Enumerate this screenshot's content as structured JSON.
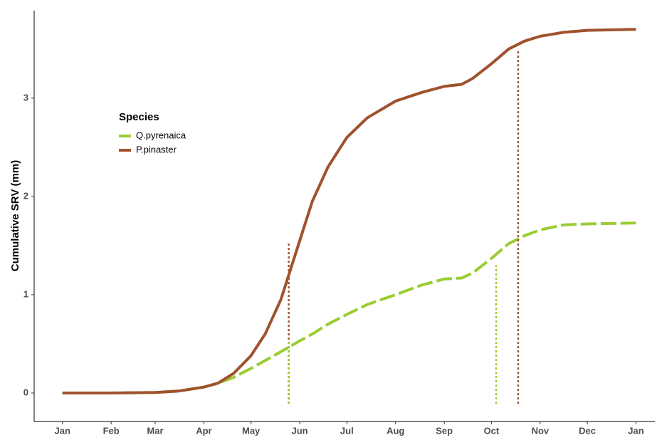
{
  "chart_data": {
    "type": "line",
    "y_label": "Cumulative SRV (mm)",
    "legend_title": "Species",
    "legend_position": "top-left",
    "grid": false,
    "xlim": [
      -17,
      378
    ],
    "ylim": [
      -0.29,
      3.89
    ],
    "xticks": [
      {
        "value": 1,
        "label": "Jan"
      },
      {
        "value": 32,
        "label": "Feb"
      },
      {
        "value": 60,
        "label": "Mar"
      },
      {
        "value": 91,
        "label": "Apr"
      },
      {
        "value": 121,
        "label": "May"
      },
      {
        "value": 152,
        "label": "Jun"
      },
      {
        "value": 182,
        "label": "Jul"
      },
      {
        "value": 213,
        "label": "Aug"
      },
      {
        "value": 244,
        "label": "Sep"
      },
      {
        "value": 274,
        "label": "Oct"
      },
      {
        "value": 305,
        "label": "Nov"
      },
      {
        "value": 335,
        "label": "Dec"
      },
      {
        "value": 366,
        "label": "Jan"
      }
    ],
    "yticks": [
      0,
      1,
      2,
      3
    ],
    "x": [
      1,
      32,
      60,
      75,
      91,
      100,
      110,
      121,
      130,
      140,
      152,
      160,
      170,
      182,
      195,
      213,
      230,
      244,
      255,
      262,
      274,
      285,
      295,
      305,
      320,
      335,
      366
    ],
    "series": [
      {
        "name": "Q.pyrenaica",
        "color": "#9acd32",
        "dash": true,
        "values": [
          0,
          0,
          0.005,
          0.02,
          0.06,
          0.1,
          0.16,
          0.25,
          0.33,
          0.42,
          0.53,
          0.6,
          0.7,
          0.8,
          0.9,
          1.0,
          1.1,
          1.16,
          1.17,
          1.22,
          1.37,
          1.52,
          1.6,
          1.66,
          1.71,
          1.72,
          1.73
        ]
      },
      {
        "name": "P.pinaster",
        "color": "#a0522d",
        "dash": false,
        "values": [
          0,
          0,
          0.005,
          0.02,
          0.06,
          0.1,
          0.2,
          0.38,
          0.6,
          0.95,
          1.55,
          1.95,
          2.3,
          2.6,
          2.8,
          2.97,
          3.06,
          3.12,
          3.14,
          3.2,
          3.35,
          3.5,
          3.58,
          3.63,
          3.67,
          3.69,
          3.7
        ]
      }
    ],
    "markers": [
      {
        "color": "#a0522d",
        "x": 145,
        "ymin": -0.11,
        "ymax": 1.53
      },
      {
        "color": "#9acd32",
        "x": 145,
        "ymin": -0.11,
        "ymax": 0.53
      },
      {
        "color": "#9acd32",
        "x": 277,
        "ymin": -0.11,
        "ymax": 1.3
      },
      {
        "color": "#a0522d",
        "x": 291,
        "ymin": -0.11,
        "ymax": 3.5
      }
    ]
  }
}
